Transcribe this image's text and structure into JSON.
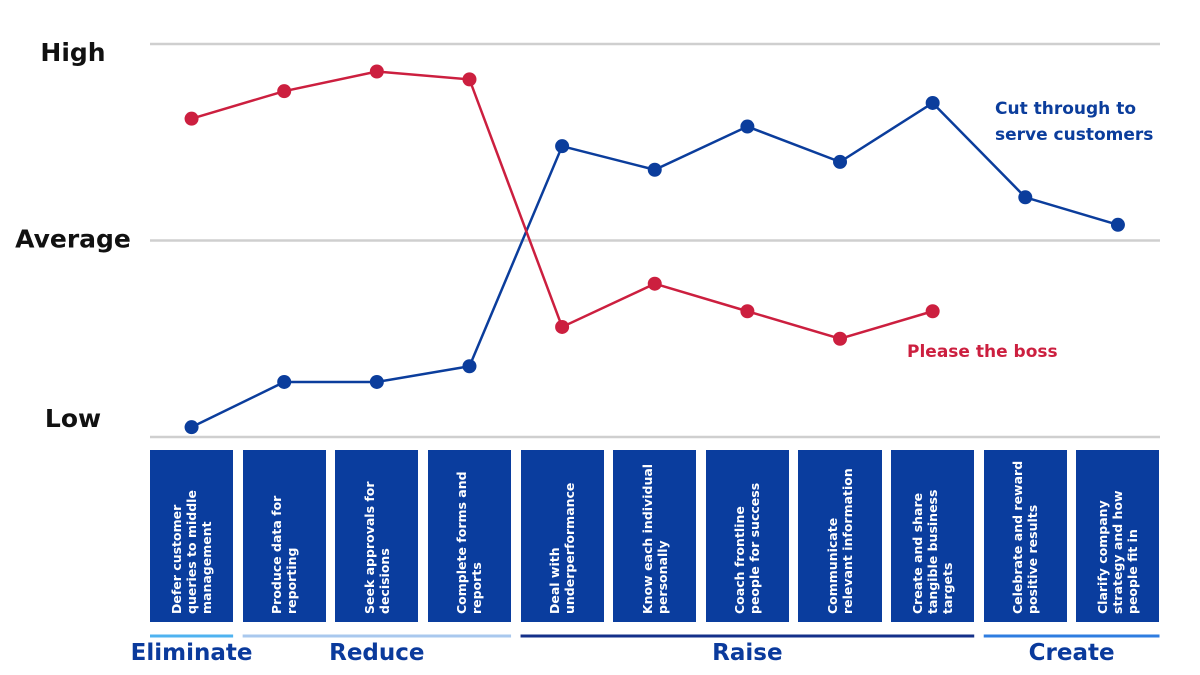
{
  "chart_data": {
    "type": "line",
    "categories": [
      "Defer customer queries to middle management",
      "Produce data for reporting",
      "Seek approvals for decisions",
      "Complete forms and reports",
      "Deal with underperformance",
      "Know each individual personally",
      "Coach frontline people for success",
      "Communicate relevant information",
      "Create and share tangible business targets",
      "Celebrate and reward positive results",
      "Clarify company strategy and how people fit in"
    ],
    "series": [
      {
        "name": "Cut through to serve customers",
        "color": "#0b3d9c",
        "values": [
          0.25,
          1.4,
          1.4,
          1.8,
          7.4,
          6.8,
          7.9,
          7.0,
          8.5,
          6.1,
          5.4
        ]
      },
      {
        "name": "Please the boss",
        "color": "#cc1f3f",
        "values": [
          8.1,
          8.8,
          9.3,
          9.1,
          2.8,
          3.9,
          3.2,
          2.5,
          3.2,
          null,
          null
        ]
      }
    ],
    "ylim": [
      0,
      10
    ],
    "yticks": [
      {
        "value": 0,
        "label": "Low"
      },
      {
        "value": 5,
        "label": "Average"
      },
      {
        "value": 10,
        "label": "High"
      }
    ],
    "grid": true,
    "groups": [
      {
        "label": "Eliminate",
        "count": 1,
        "color": "#4fb3f0"
      },
      {
        "label": "Reduce",
        "count": 3,
        "color": "#a9c8ee"
      },
      {
        "label": "Raise",
        "count": 5,
        "color": "#14308a"
      },
      {
        "label": "Create",
        "count": 2,
        "color": "#2f7de0"
      }
    ]
  }
}
